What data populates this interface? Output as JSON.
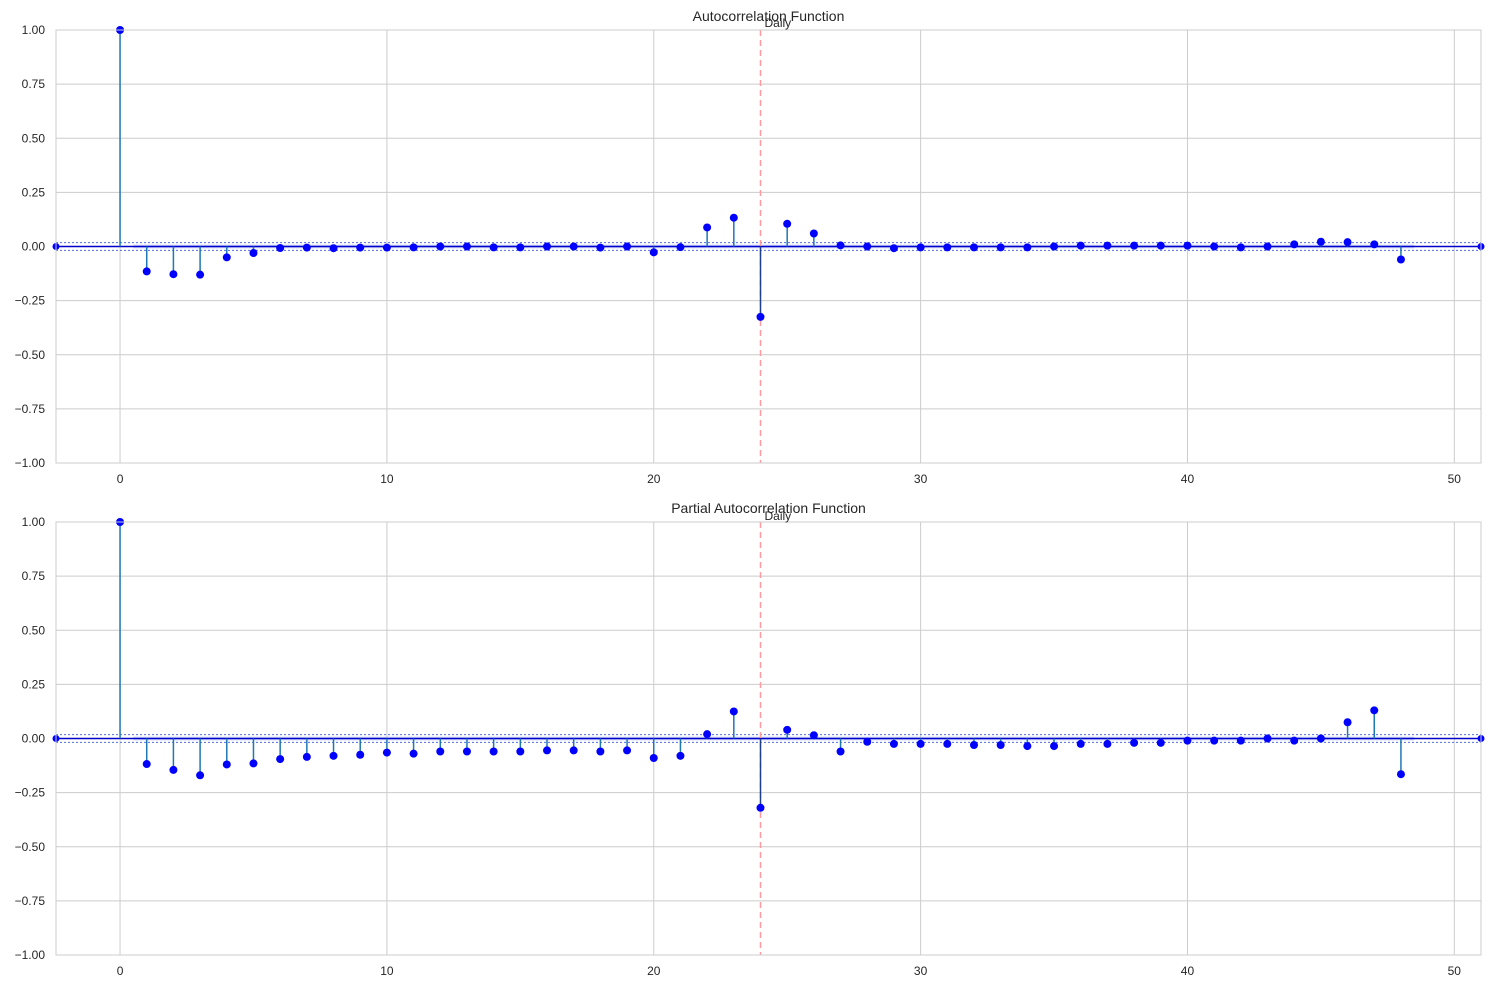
{
  "colors": {
    "stem": "#1f77b4",
    "marker": "#0000ff",
    "zero_line": "#0000cc",
    "band": "#a6b8f0",
    "band_edge": "#4f6fe0",
    "marker_line": "#ff9aa2",
    "grid": "#cccccc",
    "frame": "#cccccc",
    "text": "#262626"
  },
  "chart_data": [
    {
      "type": "stem",
      "title": "Autocorrelation Function",
      "xlabel": "",
      "ylabel": "",
      "xlim": [
        -2.4,
        51
      ],
      "ylim": [
        -1,
        1
      ],
      "xticks": [
        0,
        10,
        20,
        30,
        40,
        50
      ],
      "yticks": [
        "1.00",
        "0.75",
        "0.50",
        "0.25",
        "0.00",
        "−0.25",
        "−0.50",
        "−0.75",
        "−1.00"
      ],
      "ytick_values": [
        1,
        0.75,
        0.5,
        0.25,
        0,
        -0.25,
        -0.5,
        -0.75,
        -1
      ],
      "grid": true,
      "confidence_band": [
        -0.0085,
        0.0085
      ],
      "vline": {
        "x": 24,
        "label": "Daily"
      },
      "lags": [
        0,
        1,
        2,
        3,
        4,
        5,
        6,
        7,
        8,
        9,
        10,
        11,
        12,
        13,
        14,
        15,
        16,
        17,
        18,
        19,
        20,
        21,
        22,
        23,
        24,
        25,
        26,
        27,
        28,
        29,
        30,
        31,
        32,
        33,
        34,
        35,
        36,
        37,
        38,
        39,
        40,
        41,
        42,
        43,
        44,
        45,
        46,
        47,
        48
      ],
      "values": [
        1.0,
        -0.115,
        -0.128,
        -0.13,
        -0.05,
        -0.03,
        -0.007,
        -0.005,
        -0.008,
        -0.005,
        -0.005,
        -0.004,
        0.0,
        0.0,
        -0.004,
        -0.004,
        0.0,
        0.0,
        -0.005,
        0.0,
        -0.027,
        -0.003,
        0.088,
        0.133,
        -0.325,
        0.105,
        0.06,
        0.005,
        0.0,
        -0.008,
        -0.004,
        -0.004,
        -0.004,
        -0.004,
        -0.004,
        0.0,
        0.004,
        0.004,
        0.004,
        0.004,
        0.004,
        0.0,
        -0.004,
        0.0,
        0.01,
        0.022,
        0.02,
        0.01,
        -0.06
      ]
    },
    {
      "type": "stem",
      "title": "Partial Autocorrelation Function",
      "xlabel": "",
      "ylabel": "",
      "xlim": [
        -2.4,
        51
      ],
      "ylim": [
        -1,
        1
      ],
      "xticks": [
        0,
        10,
        20,
        30,
        40,
        50
      ],
      "yticks": [
        "1.00",
        "0.75",
        "0.50",
        "0.25",
        "0.00",
        "−0.25",
        "−0.50",
        "−0.75",
        "−1.00"
      ],
      "ytick_values": [
        1,
        0.75,
        0.5,
        0.25,
        0,
        -0.25,
        -0.5,
        -0.75,
        -1
      ],
      "grid": true,
      "confidence_band": [
        -0.0085,
        0.0085
      ],
      "vline": {
        "x": 24,
        "label": "Daily"
      },
      "lags": [
        0,
        1,
        2,
        3,
        4,
        5,
        6,
        7,
        8,
        9,
        10,
        11,
        12,
        13,
        14,
        15,
        16,
        17,
        18,
        19,
        20,
        21,
        22,
        23,
        24,
        25,
        26,
        27,
        28,
        29,
        30,
        31,
        32,
        33,
        34,
        35,
        36,
        37,
        38,
        39,
        40,
        41,
        42,
        43,
        44,
        45,
        46,
        47,
        48
      ],
      "values": [
        1.0,
        -0.118,
        -0.145,
        -0.17,
        -0.12,
        -0.115,
        -0.095,
        -0.085,
        -0.08,
        -0.075,
        -0.065,
        -0.07,
        -0.06,
        -0.06,
        -0.06,
        -0.06,
        -0.055,
        -0.055,
        -0.06,
        -0.055,
        -0.09,
        -0.08,
        0.02,
        0.125,
        -0.32,
        0.04,
        0.015,
        -0.06,
        -0.015,
        -0.025,
        -0.025,
        -0.025,
        -0.03,
        -0.03,
        -0.035,
        -0.035,
        -0.025,
        -0.025,
        -0.02,
        -0.02,
        -0.01,
        -0.01,
        -0.01,
        0.0,
        -0.01,
        0.0,
        0.075,
        0.13,
        -0.165
      ]
    }
  ]
}
